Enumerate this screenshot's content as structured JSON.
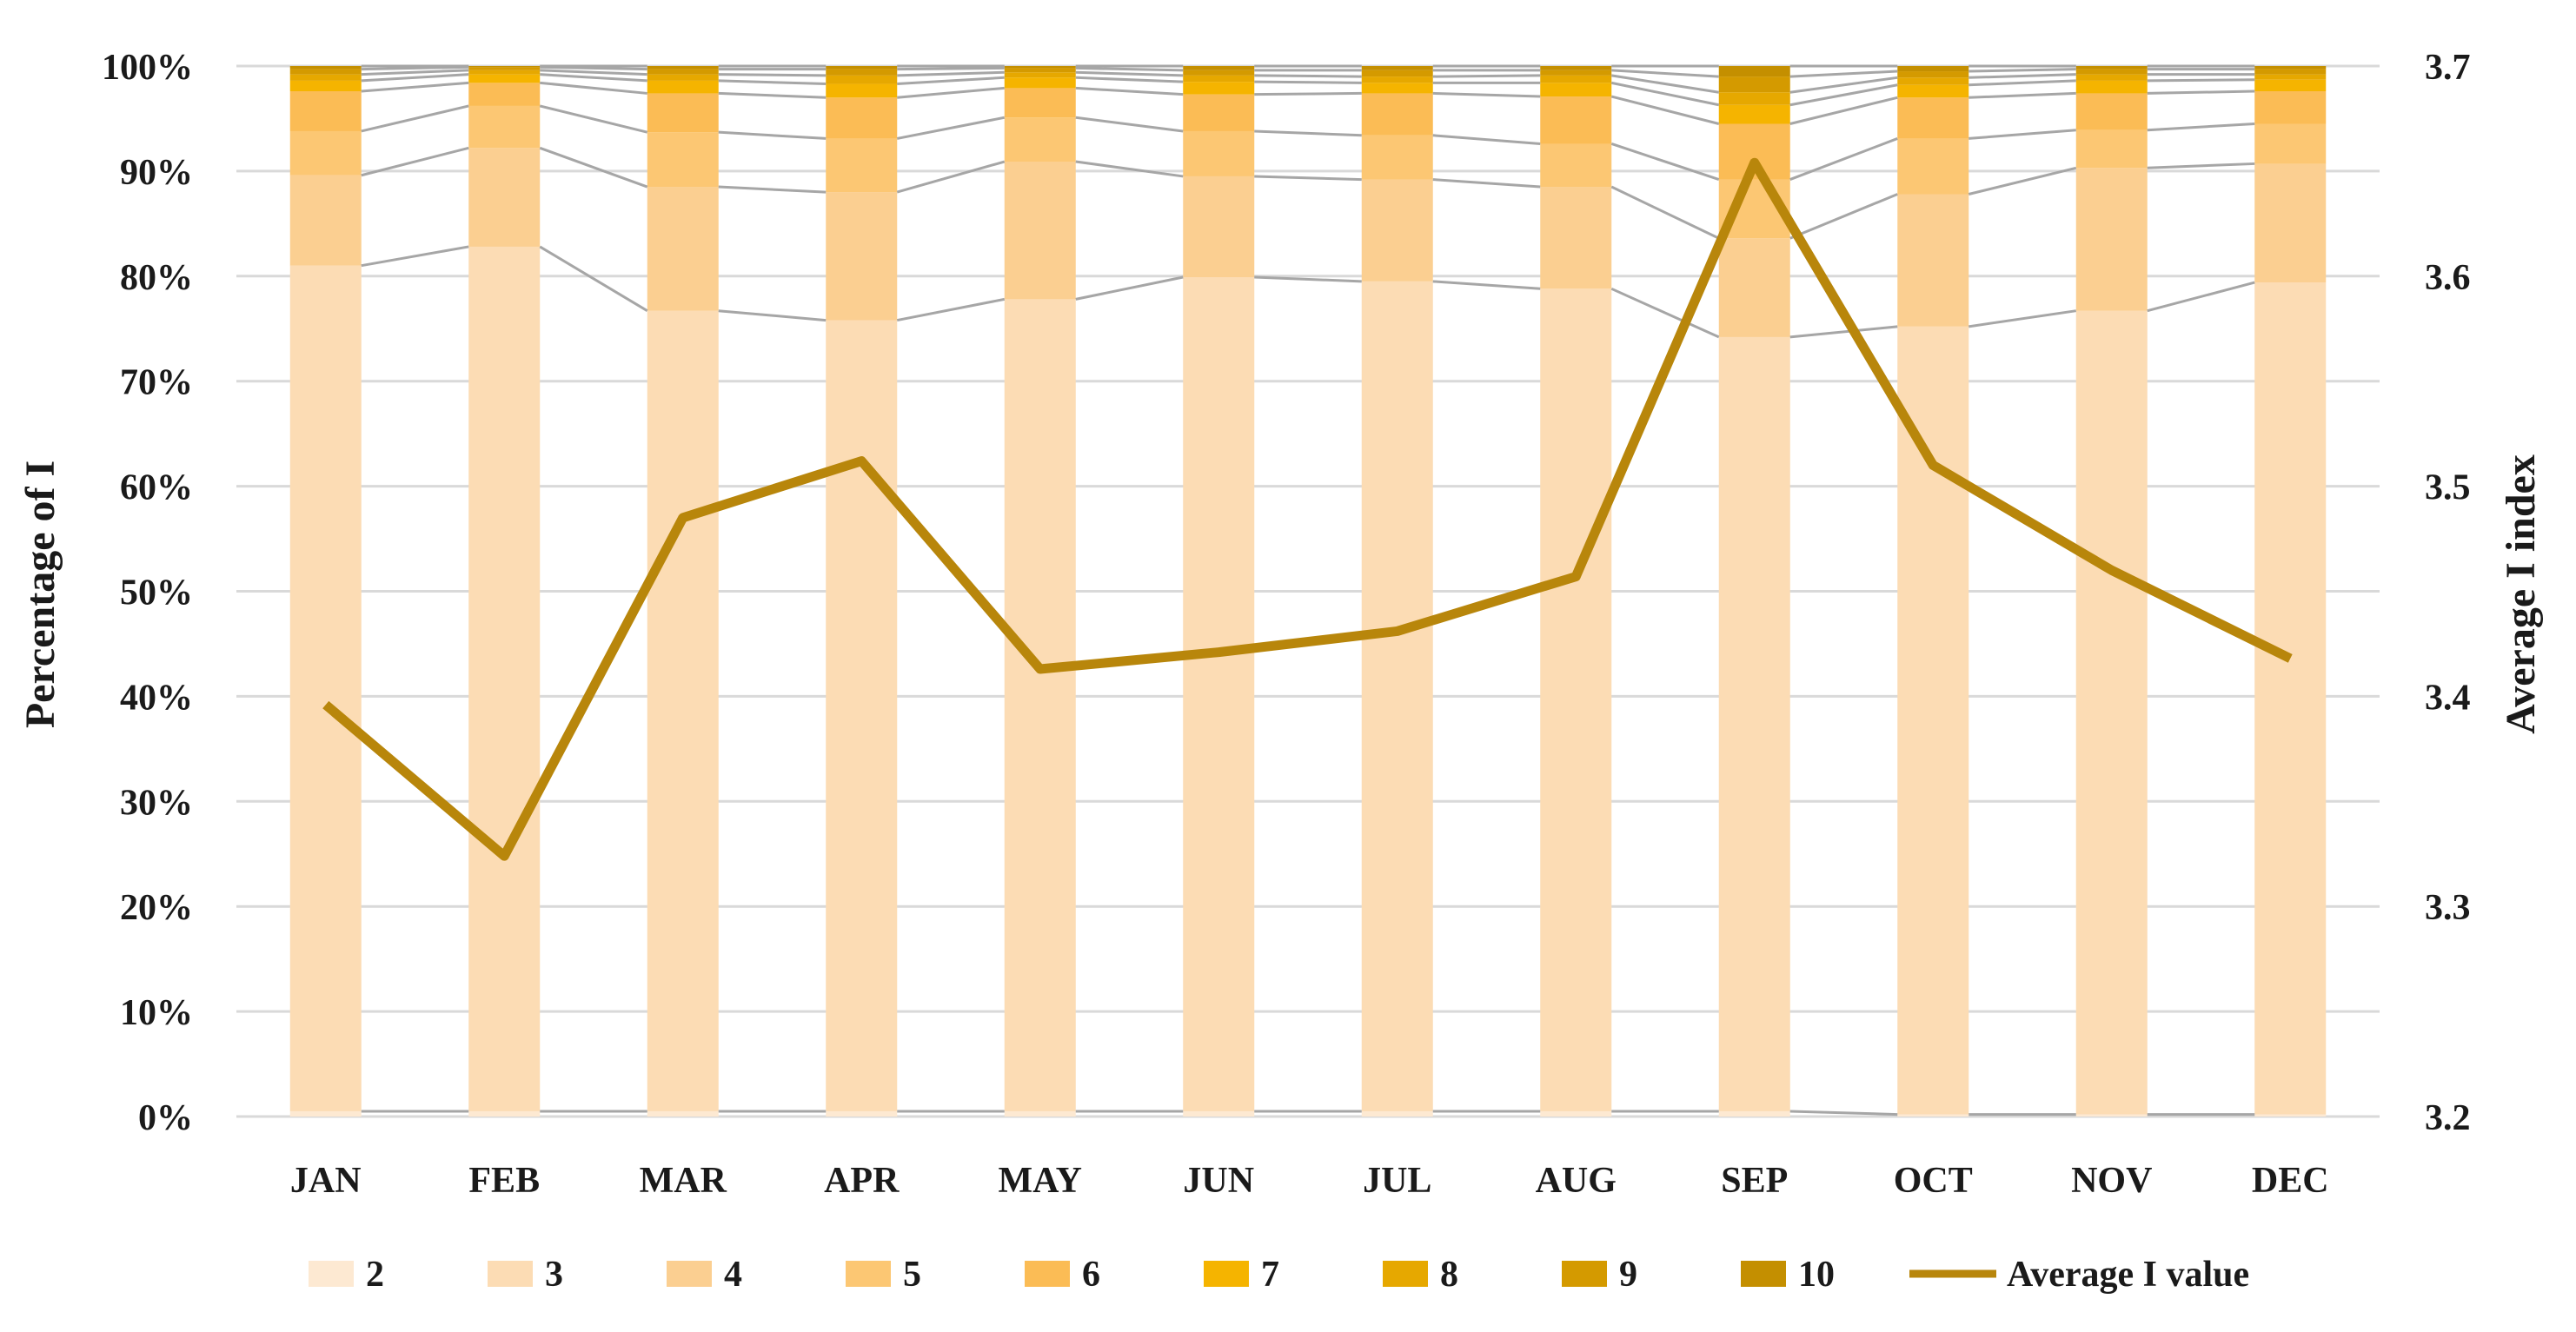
{
  "chart_data": {
    "type": "bar",
    "stacked": true,
    "categories": [
      "JAN",
      "FEB",
      "MAR",
      "APR",
      "MAY",
      "JUN",
      "JUL",
      "AUG",
      "SEP",
      "OCT",
      "NOV",
      "DEC"
    ],
    "ylabel": "Percentage of I",
    "y2label": "Average I index",
    "ylim": [
      0,
      100
    ],
    "y2lim": [
      3.2,
      3.7
    ],
    "yticks": [
      "0%",
      "10%",
      "20%",
      "30%",
      "40%",
      "50%",
      "60%",
      "70%",
      "80%",
      "90%",
      "100%"
    ],
    "y2ticks": [
      "3.2",
      "3.3",
      "3.4",
      "3.5",
      "3.6",
      "3.7"
    ],
    "y2tick_values": [
      3.2,
      3.3,
      3.4,
      3.5,
      3.6,
      3.7
    ],
    "legend_position": "bottom",
    "grid": true,
    "series": [
      {
        "name": "2",
        "color": "#fde9d2",
        "values": [
          0.5,
          0.5,
          0.5,
          0.5,
          0.5,
          0.5,
          0.5,
          0.5,
          0.5,
          0.2,
          0.2,
          0.2
        ]
      },
      {
        "name": "3",
        "color": "#fcdcb4",
        "values": [
          80.5,
          82.3,
          76.2,
          75.3,
          77.3,
          79.4,
          79.0,
          78.3,
          73.7,
          75.0,
          76.5,
          79.2
        ]
      },
      {
        "name": "4",
        "color": "#fbcf91",
        "values": [
          8.6,
          9.4,
          11.8,
          12.2,
          13.1,
          9.6,
          9.7,
          9.7,
          9.4,
          12.6,
          13.6,
          11.3
        ]
      },
      {
        "name": "5",
        "color": "#fcc773",
        "values": [
          4.2,
          4.0,
          5.2,
          5.1,
          4.2,
          4.3,
          4.2,
          4.1,
          5.6,
          5.3,
          3.6,
          3.8
        ]
      },
      {
        "name": "6",
        "color": "#fbbc55",
        "values": [
          3.8,
          2.2,
          3.7,
          3.9,
          2.8,
          3.5,
          4.0,
          4.5,
          5.3,
          3.9,
          3.5,
          3.1
        ]
      },
      {
        "name": "7",
        "color": "#f5b400",
        "values": [
          1.0,
          0.8,
          1.2,
          1.3,
          1.0,
          1.2,
          1.0,
          1.3,
          1.8,
          1.2,
          1.2,
          1.1
        ]
      },
      {
        "name": "8",
        "color": "#e6a800",
        "values": [
          0.6,
          0.4,
          0.6,
          0.8,
          0.5,
          0.6,
          0.6,
          0.7,
          1.2,
          0.7,
          0.6,
          0.5
        ]
      },
      {
        "name": "9",
        "color": "#d49a00",
        "values": [
          0.5,
          0.3,
          0.5,
          0.6,
          0.4,
          0.5,
          0.6,
          0.5,
          1.5,
          0.6,
          0.5,
          0.5
        ]
      },
      {
        "name": "10",
        "color": "#c48f00",
        "values": [
          0.3,
          0.1,
          0.3,
          0.3,
          0.2,
          0.4,
          0.4,
          0.4,
          1.0,
          0.5,
          0.3,
          0.3
        ]
      }
    ],
    "line_series": {
      "name": "Average I value",
      "color": "#b8860b",
      "axis": "right",
      "values": [
        3.396,
        3.324,
        3.485,
        3.512,
        3.413,
        3.421,
        3.431,
        3.457,
        3.654,
        3.51,
        3.46,
        3.418
      ]
    }
  }
}
